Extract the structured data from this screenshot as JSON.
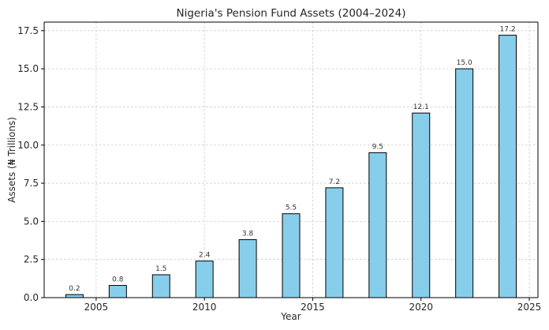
{
  "chart_data": {
    "type": "bar",
    "title": "Nigeria's Pension Fund Assets (2004–2024)",
    "xlabel": "Year",
    "ylabel": "Assets (₦ Trillions)",
    "x": [
      2004,
      2006,
      2008,
      2010,
      2012,
      2014,
      2016,
      2018,
      2020,
      2022,
      2024
    ],
    "values": [
      0.2,
      0.8,
      1.5,
      2.4,
      3.8,
      5.5,
      7.2,
      9.5,
      12.1,
      15.0,
      17.2
    ],
    "data_labels": [
      "0.2",
      "0.8",
      "1.5",
      "2.4",
      "3.8",
      "5.5",
      "7.2",
      "9.5",
      "12.1",
      "15.0",
      "17.2"
    ],
    "xlim": [
      2002.6,
      2025.4
    ],
    "ylim": [
      0,
      18.06
    ],
    "x_ticks": [
      2005,
      2010,
      2015,
      2020,
      2025
    ],
    "x_tick_labels": [
      "2005",
      "2010",
      "2015",
      "2020",
      "2025"
    ],
    "y_ticks": [
      0,
      2.5,
      5,
      7.5,
      10,
      12.5,
      15,
      17.5
    ],
    "y_tick_labels": [
      "0.0",
      "2.5",
      "5.0",
      "7.5",
      "10.0",
      "12.5",
      "15.0",
      "17.5"
    ],
    "bar_width_years": 0.8,
    "bar_color": "#87ceeb",
    "bar_edge_color": "#000000",
    "grid": true,
    "legend": false
  }
}
